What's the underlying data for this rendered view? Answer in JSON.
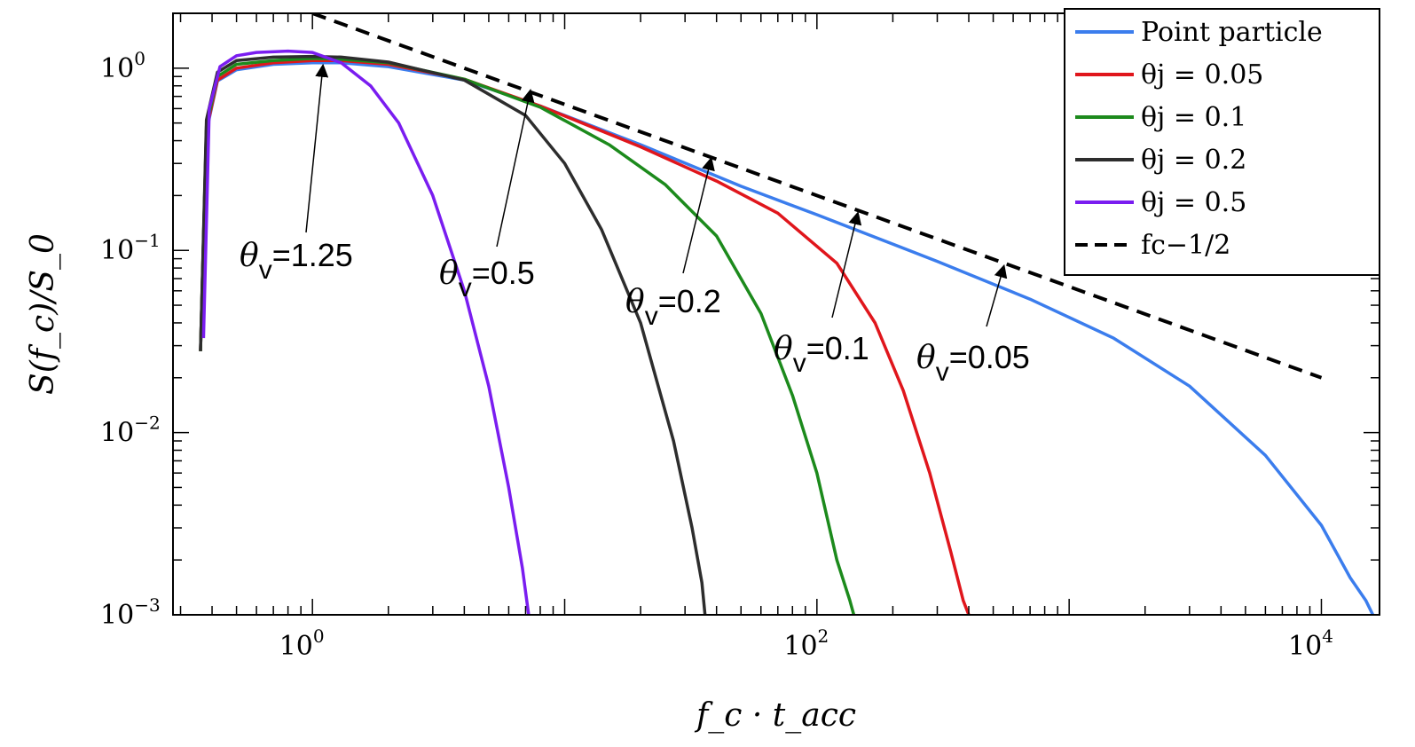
{
  "chart_data": {
    "type": "line",
    "title": "",
    "xlabel": "f_c · t_acc",
    "ylabel": "S(f_c)/S_0",
    "xscale": "log",
    "yscale": "log",
    "xlim": [
      0.28,
      17000
    ],
    "ylim": [
      0.001,
      2.0
    ],
    "x_ticks": [
      {
        "value": 1,
        "base": "10",
        "exp": "0"
      },
      {
        "value": 100,
        "base": "10",
        "exp": "2"
      },
      {
        "value": 10000,
        "base": "10",
        "exp": "4"
      }
    ],
    "y_ticks": [
      {
        "value": 1,
        "base": "10",
        "exp": "0"
      },
      {
        "value": 0.1,
        "base": "10",
        "exp": "−1"
      },
      {
        "value": 0.01,
        "base": "10",
        "exp": "−2"
      },
      {
        "value": 0.001,
        "base": "10",
        "exp": "−3"
      }
    ],
    "grid": false,
    "legend_position": "top-right",
    "legend": [
      {
        "label": "Point particle",
        "color": "#3b7ded",
        "dash": false
      },
      {
        "label": "θj = 0.05",
        "color": "#e0161c",
        "dash": false
      },
      {
        "label": "θj = 0.1",
        "color": "#1c8a1c",
        "dash": false
      },
      {
        "label": "θj = 0.2",
        "color": "#2d2d2d",
        "dash": false
      },
      {
        "label": "θj = 0.5",
        "color": "#7a1df0",
        "dash": false
      },
      {
        "label": "fc−1/2",
        "color": "#000000",
        "dash": true
      }
    ],
    "series": [
      {
        "name": "Point particle",
        "color": "#3b7ded",
        "x": [
          0.36,
          0.38,
          0.42,
          0.5,
          0.7,
          1.0,
          1.3,
          2,
          4,
          8,
          20,
          50,
          100,
          300,
          700,
          1500,
          3000,
          6000,
          10000,
          13000,
          15000,
          16000
        ],
        "y": [
          0.028,
          0.45,
          0.85,
          0.98,
          1.05,
          1.07,
          1.07,
          1.02,
          0.86,
          0.62,
          0.38,
          0.225,
          0.157,
          0.087,
          0.054,
          0.033,
          0.018,
          0.0075,
          0.0031,
          0.0016,
          0.0012,
          0.001
        ]
      },
      {
        "name": "θj = 0.05",
        "color": "#e0161c",
        "x": [
          0.36,
          0.38,
          0.42,
          0.5,
          0.7,
          1.0,
          1.3,
          2,
          4,
          8,
          20,
          40,
          70,
          120,
          170,
          220,
          280,
          340,
          380,
          400
        ],
        "y": [
          0.028,
          0.46,
          0.86,
          1.0,
          1.07,
          1.1,
          1.1,
          1.05,
          0.87,
          0.62,
          0.37,
          0.24,
          0.16,
          0.085,
          0.04,
          0.017,
          0.006,
          0.0022,
          0.0012,
          0.001
        ]
      },
      {
        "name": "θj = 0.1",
        "color": "#1c8a1c",
        "x": [
          0.36,
          0.38,
          0.42,
          0.5,
          0.7,
          1.0,
          1.3,
          2,
          4,
          8,
          15,
          25,
          40,
          60,
          80,
          100,
          120,
          135,
          140
        ],
        "y": [
          0.028,
          0.48,
          0.9,
          1.05,
          1.1,
          1.13,
          1.12,
          1.07,
          0.87,
          0.61,
          0.38,
          0.23,
          0.12,
          0.045,
          0.016,
          0.006,
          0.002,
          0.0012,
          0.001
        ]
      },
      {
        "name": "θj = 0.2",
        "color": "#2d2d2d",
        "x": [
          0.36,
          0.38,
          0.42,
          0.5,
          0.7,
          1.0,
          1.3,
          2,
          4,
          7,
          10,
          14,
          20,
          27,
          32,
          35,
          36
        ],
        "y": [
          0.028,
          0.52,
          0.95,
          1.1,
          1.15,
          1.16,
          1.15,
          1.08,
          0.86,
          0.55,
          0.3,
          0.13,
          0.04,
          0.009,
          0.003,
          0.0015,
          0.001
        ]
      },
      {
        "name": "θj = 0.5",
        "color": "#7a1df0",
        "x": [
          0.37,
          0.39,
          0.43,
          0.5,
          0.6,
          0.8,
          1.0,
          1.3,
          1.7,
          2.2,
          3,
          4,
          5,
          6,
          6.8,
          7.2
        ],
        "y": [
          0.033,
          0.6,
          1.02,
          1.17,
          1.22,
          1.24,
          1.22,
          1.07,
          0.8,
          0.5,
          0.2,
          0.06,
          0.018,
          0.005,
          0.0018,
          0.001
        ]
      },
      {
        "name": "fc−1/2",
        "color": "#000000",
        "dashed": true,
        "x": [
          1.0,
          10000
        ],
        "y": [
          2.0,
          0.02
        ]
      }
    ],
    "annotations": [
      {
        "theta": "θ",
        "sub": "v",
        "text": "=1.25",
        "arrow_to": {
          "x": 1.1,
          "y": 1.07
        }
      },
      {
        "theta": "θ",
        "sub": "v",
        "text": "=0.5",
        "arrow_to": {
          "x": 7.3,
          "y": 0.78
        }
      },
      {
        "theta": "θ",
        "sub": "v",
        "text": "=0.2",
        "arrow_to": {
          "x": 38,
          "y": 0.33
        }
      },
      {
        "theta": "θ",
        "sub": "v",
        "text": "=0.1",
        "arrow_to": {
          "x": 145,
          "y": 0.166
        }
      },
      {
        "theta": "θ",
        "sub": "v",
        "text": "=0.05",
        "arrow_to": {
          "x": 550,
          "y": 0.085
        }
      }
    ]
  }
}
